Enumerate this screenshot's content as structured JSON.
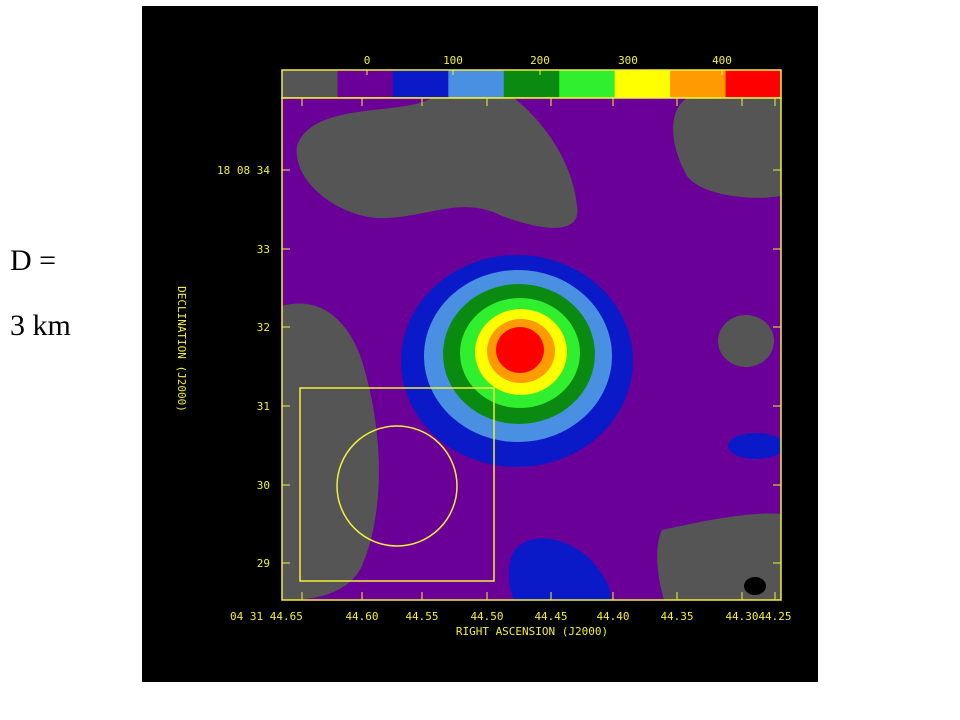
{
  "side_annotation": {
    "line1": "D =",
    "line2": "3 km"
  },
  "colors": {
    "panel_bg": "#000000",
    "axis": "#f2f03a",
    "levels": [
      "#555555",
      "#6b0099",
      "#0a1ac8",
      "#4a90e2",
      "#0a8a10",
      "#2fef2f",
      "#ffff00",
      "#ff9a00",
      "#ff0000"
    ]
  },
  "chart_data": {
    "type": "contour",
    "title": "",
    "xlabel": "RIGHT ASCENSION (J2000)",
    "ylabel": "DECLINATION (J2000)",
    "colorbar": {
      "ticks": [
        "0",
        "100",
        "200",
        "300",
        "400"
      ]
    },
    "x_ticks": [
      "04 31 44.65",
      "44.60",
      "44.55",
      "44.50",
      "44.45",
      "44.40",
      "44.35",
      "44.30",
      "44.25"
    ],
    "y_ticks": [
      "29",
      "30",
      "31",
      "32",
      "33",
      "18 08 34"
    ],
    "xlim": [
      "04 31 44.67",
      "04 31 44.24"
    ],
    "ylim": [
      "18 08 28.6",
      "18 08 34.9"
    ],
    "peak": {
      "ra": "04 31 44.463",
      "dec": "18 08 31.7",
      "value": 420
    },
    "overlays": [
      "square box",
      "circle",
      "beam ellipse"
    ]
  }
}
